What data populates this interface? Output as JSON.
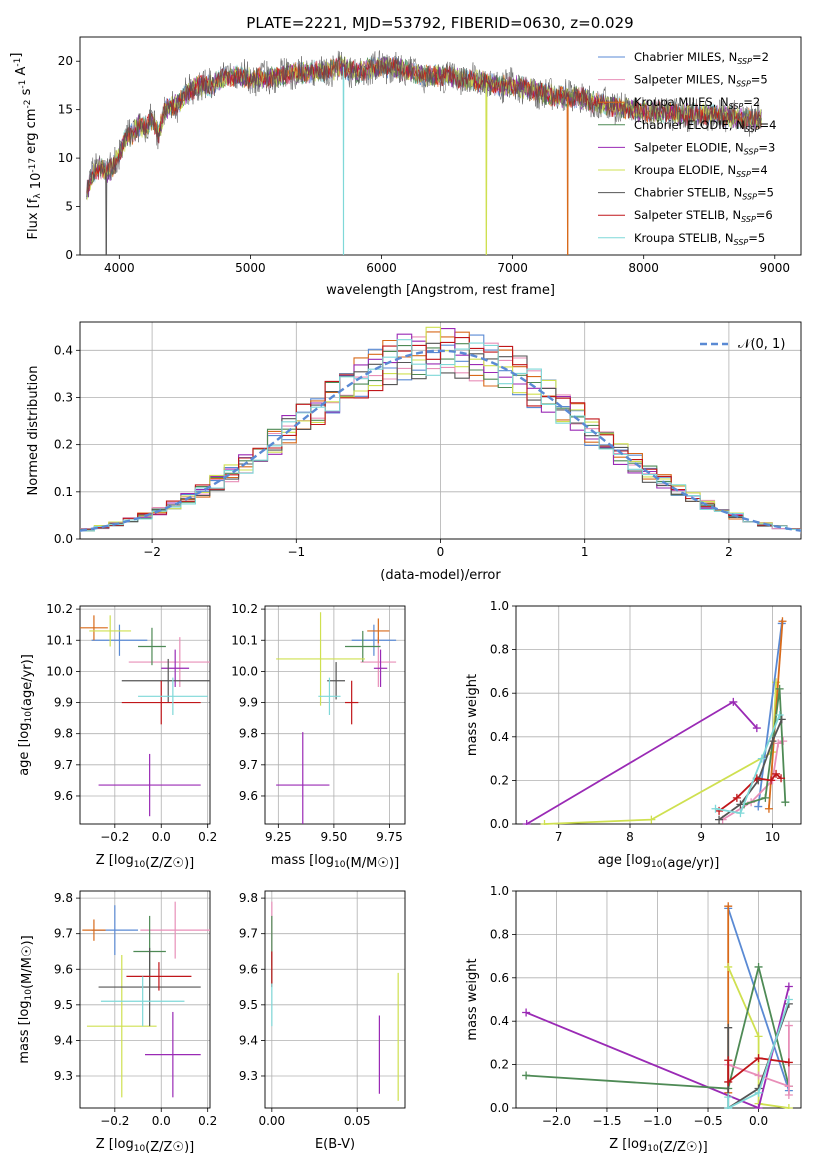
{
  "title": "PLATE=2221, MJD=53792, FIBERID=0630, z=0.029",
  "colors": {
    "chabrier_miles": "#5a8ad4",
    "salpeter_miles": "#e88fb8",
    "kroupa_miles": "#d86a1a",
    "chabrier_elodie": "#4e8a55",
    "salpeter_elodie": "#9a2ab5",
    "kroupa_elodie": "#cfe050",
    "chabrier_stelib": "#555555",
    "salpeter_stelib": "#c0161a",
    "kroupa_stelib": "#7fd8d8",
    "normal_curve": "#5a8ad4",
    "grid": "#b0b0b0"
  },
  "chart_data": [
    {
      "id": "spectrum",
      "type": "line",
      "xlabel": "wavelength [Angstrom, rest frame]",
      "ylabel": "Flux [f_λ 10^-17 erg cm^-2 s^-1 A^-1]",
      "xlim": [
        3700,
        9200
      ],
      "ylim": [
        0,
        22.5
      ],
      "xticks": [
        4000,
        5000,
        6000,
        7000,
        8000,
        9000
      ],
      "yticks": [
        0,
        5,
        10,
        15,
        20
      ],
      "grid": false,
      "legend_position": "top-right",
      "profile": {
        "x": [
          3750,
          3800,
          3850,
          3900,
          3950,
          4000,
          4050,
          4100,
          4150,
          4200,
          4250,
          4300,
          4350,
          4400,
          4450,
          4500,
          4600,
          4700,
          4800,
          4900,
          5000,
          5100,
          5200,
          5300,
          5400,
          5500,
          5600,
          5700,
          5800,
          5900,
          6000,
          6100,
          6200,
          6300,
          6400,
          6500,
          6600,
          6700,
          6800,
          6900,
          7000,
          7100,
          7200,
          7300,
          7400,
          7500,
          7600,
          7700,
          7800,
          7900,
          8000,
          8100,
          8200,
          8300,
          8400,
          8500,
          8600,
          8700,
          8800,
          8900
        ],
        "y": [
          6.5,
          8.5,
          9.0,
          8.5,
          9.0,
          10.5,
          12.0,
          12.5,
          13.5,
          13.0,
          14.0,
          12.5,
          15.0,
          15.5,
          15.5,
          16.5,
          17.5,
          17.5,
          18.3,
          18.5,
          18.2,
          18.3,
          18.3,
          18.8,
          18.8,
          19.0,
          19.0,
          19.5,
          18.8,
          19.2,
          19.5,
          19.3,
          19.0,
          18.5,
          18.5,
          18.5,
          18.2,
          18.0,
          17.8,
          17.5,
          17.5,
          17.2,
          16.8,
          16.5,
          16.3,
          16.3,
          15.8,
          15.5,
          15.3,
          15.0,
          14.8,
          14.8,
          14.7,
          14.5,
          14.5,
          14.5,
          14.3,
          14.2,
          14.0,
          14.0
        ]
      },
      "series": [
        {
          "name": "Chabrier MILES, N_SSP=2",
          "label_main": "Chabrier MILES, N",
          "label_sub": "SSP",
          "label_end": "=2",
          "color_key": "chabrier_miles"
        },
        {
          "name": "Salpeter MILES, N_SSP=5",
          "label_main": "Salpeter MILES, N",
          "label_sub": "SSP",
          "label_end": "=5",
          "color_key": "salpeter_miles"
        },
        {
          "name": "Kroupa MILES, N_SSP=2",
          "label_main": "Kroupa MILES, N",
          "label_sub": "SSP",
          "label_end": "=2",
          "color_key": "kroupa_miles"
        },
        {
          "name": "Chabrier ELODIE, N_SSP=4",
          "label_main": "Chabrier ELODIE, N",
          "label_sub": "SSP",
          "label_end": "=4",
          "color_key": "chabrier_elodie"
        },
        {
          "name": "Salpeter ELODIE, N_SSP=3",
          "label_main": "Salpeter ELODIE, N",
          "label_sub": "SSP",
          "label_end": "=3",
          "color_key": "salpeter_elodie"
        },
        {
          "name": "Kroupa ELODIE, N_SSP=4",
          "label_main": "Kroupa ELODIE, N",
          "label_sub": "SSP",
          "label_end": "=4",
          "color_key": "kroupa_elodie"
        },
        {
          "name": "Chabrier STELIB, N_SSP=5",
          "label_main": "Chabrier STELIB, N",
          "label_sub": "SSP",
          "label_end": "=5",
          "color_key": "chabrier_stelib"
        },
        {
          "name": "Salpeter STELIB, N_SSP=6",
          "label_main": "Salpeter STELIB, N",
          "label_sub": "SSP",
          "label_end": "=6",
          "color_key": "salpeter_stelib"
        },
        {
          "name": "Kroupa STELIB, N_SSP=5",
          "label_main": "Kroupa STELIB, N",
          "label_sub": "SSP",
          "label_end": "=5",
          "color_key": "kroupa_stelib"
        }
      ],
      "dropouts": [
        {
          "x": 5710,
          "color_key": "kroupa_stelib"
        },
        {
          "x": 6800,
          "color_key": "kroupa_elodie"
        },
        {
          "x": 7420,
          "color_key": "kroupa_miles"
        },
        {
          "x": 3900,
          "color_key": "chabrier_stelib"
        }
      ]
    },
    {
      "id": "residual-histogram",
      "type": "histogram",
      "xlabel": "(data-model)/error",
      "ylabel": "Normed distribution",
      "xlim": [
        -2.5,
        2.5
      ],
      "ylim": [
        0,
        0.46
      ],
      "xticks": [
        -2,
        -1,
        0,
        1,
        2
      ],
      "yticks": [
        0.0,
        0.1,
        0.2,
        0.3,
        0.4
      ],
      "grid": true,
      "bin_width": 0.1,
      "legend_position": "top-right",
      "normal_curve": {
        "label": "𝒩(0, 1)",
        "mean": 0,
        "sigma": 1
      },
      "series_color_keys": [
        "chabrier_miles",
        "salpeter_miles",
        "kroupa_miles",
        "chabrier_elodie",
        "salpeter_elodie",
        "kroupa_elodie",
        "chabrier_stelib",
        "salpeter_stelib",
        "kroupa_stelib"
      ]
    },
    {
      "id": "age-vs-z",
      "type": "errorbar",
      "xlabel": "Z [log10(Z/Z☉)]",
      "ylabel": "age [log10(age/yr)]",
      "xlim": [
        -0.35,
        0.21
      ],
      "ylim": [
        9.51,
        10.21
      ],
      "xticks": [
        -0.2,
        0.0,
        0.2
      ],
      "xticklabels": [
        "−0.2",
        "0.0",
        "0.2"
      ],
      "yticks": [
        9.6,
        9.7,
        9.8,
        9.9,
        10.0,
        10.1,
        10.2
      ],
      "grid": true,
      "points": [
        {
          "color_key": "chabrier_miles",
          "x": -0.18,
          "xerr": 0.12,
          "y": 10.1,
          "yerr": 0.05
        },
        {
          "color_key": "salpeter_miles",
          "x": 0.08,
          "xerr": 0.22,
          "y": 10.03,
          "yerr": 0.08
        },
        {
          "color_key": "kroupa_miles",
          "x": -0.29,
          "xerr": 0.06,
          "y": 10.14,
          "yerr": 0.04
        },
        {
          "color_key": "chabrier_elodie",
          "x": -0.04,
          "xerr": 0.06,
          "y": 10.08,
          "yerr": 0.06
        },
        {
          "color_key": "salpeter_elodie",
          "x": 0.06,
          "xerr": 0.06,
          "y": 10.01,
          "yerr": 0.06
        },
        {
          "color_key": "kroupa_elodie",
          "x": -0.22,
          "xerr": 0.09,
          "y": 10.13,
          "yerr": 0.05
        },
        {
          "color_key": "chabrier_stelib",
          "x": 0.03,
          "xerr": 0.2,
          "y": 9.97,
          "yerr": 0.07
        },
        {
          "color_key": "salpeter_stelib",
          "x": 0.0,
          "xerr": 0.17,
          "y": 9.9,
          "yerr": 0.07
        },
        {
          "color_key": "kroupa_stelib",
          "x": 0.05,
          "xerr": 0.15,
          "y": 9.92,
          "yerr": 0.06
        },
        {
          "color_key": "salpeter_elodie",
          "x": -0.05,
          "xerr": 0.22,
          "y": 9.635,
          "yerr": 0.1
        }
      ]
    },
    {
      "id": "age-vs-mass",
      "type": "errorbar",
      "xlabel": "mass [log10(M/M☉)]",
      "xlim": [
        9.19,
        9.82
      ],
      "ylim": [
        9.51,
        10.21
      ],
      "xticks": [
        9.25,
        9.5,
        9.75
      ],
      "xticklabels": [
        "9.25",
        "9.50",
        "9.75"
      ],
      "yticks": [
        9.6,
        9.7,
        9.8,
        9.9,
        10.0,
        10.1,
        10.2
      ],
      "grid": true,
      "points": [
        {
          "color_key": "chabrier_miles",
          "x": 9.68,
          "xerr": 0.1,
          "y": 10.1,
          "yerr": 0.05
        },
        {
          "color_key": "salpeter_miles",
          "x": 9.7,
          "xerr": 0.08,
          "y": 10.03,
          "yerr": 0.08
        },
        {
          "color_key": "kroupa_miles",
          "x": 9.7,
          "xerr": 0.05,
          "y": 10.13,
          "yerr": 0.04
        },
        {
          "color_key": "chabrier_elodie",
          "x": 9.63,
          "xerr": 0.08,
          "y": 10.08,
          "yerr": 0.05
        },
        {
          "color_key": "salpeter_elodie",
          "x": 9.71,
          "xerr": 0.03,
          "y": 10.01,
          "yerr": 0.06
        },
        {
          "color_key": "kroupa_elodie",
          "x": 9.44,
          "xerr": 0.2,
          "y": 10.04,
          "yerr": 0.15
        },
        {
          "color_key": "chabrier_stelib",
          "x": 9.51,
          "xerr": 0.04,
          "y": 9.97,
          "yerr": 0.06
        },
        {
          "color_key": "salpeter_stelib",
          "x": 9.58,
          "xerr": 0.03,
          "y": 9.9,
          "yerr": 0.07
        },
        {
          "color_key": "kroupa_stelib",
          "x": 9.48,
          "xerr": 0.05,
          "y": 9.92,
          "yerr": 0.06
        },
        {
          "color_key": "salpeter_elodie",
          "x": 9.36,
          "xerr": 0.12,
          "y": 9.635,
          "yerr": 0.17
        }
      ]
    },
    {
      "id": "mass-weight-vs-age",
      "type": "line",
      "xlabel": "age [log10(age/yr)]",
      "ylabel": "mass weight",
      "xlim": [
        6.4,
        10.4
      ],
      "ylim": [
        0,
        1.0
      ],
      "xticks": [
        7,
        8,
        9,
        10
      ],
      "yticks": [
        0.0,
        0.2,
        0.4,
        0.6,
        0.8,
        1.0
      ],
      "grid": true,
      "series": [
        {
          "color_key": "kroupa_elodie",
          "x": [
            6.8,
            8.3,
            10.0,
            10.05
          ],
          "y": [
            0.0,
            0.02,
            0.33,
            0.65
          ]
        },
        {
          "color_key": "salpeter_elodie",
          "x": [
            6.55,
            9.45,
            9.78
          ],
          "y": [
            0.0,
            0.56,
            0.44
          ]
        },
        {
          "color_key": "chabrier_miles",
          "x": [
            9.8,
            10.13
          ],
          "y": [
            0.08,
            0.92
          ]
        },
        {
          "color_key": "kroupa_miles",
          "x": [
            9.95,
            10.14
          ],
          "y": [
            0.07,
            0.93
          ]
        },
        {
          "color_key": "salpeter_miles",
          "x": [
            9.3,
            9.7,
            10.0,
            10.08,
            10.15
          ],
          "y": [
            0.02,
            0.1,
            0.2,
            0.37,
            0.38
          ]
        },
        {
          "color_key": "chabrier_elodie",
          "x": [
            9.6,
            9.9,
            10.1,
            10.18
          ],
          "y": [
            0.09,
            0.12,
            0.62,
            0.1
          ]
        },
        {
          "color_key": "chabrier_stelib",
          "x": [
            9.25,
            9.55,
            9.8,
            10.0,
            10.13
          ],
          "y": [
            0.02,
            0.09,
            0.2,
            0.38,
            0.48
          ]
        },
        {
          "color_key": "salpeter_stelib",
          "x": [
            9.25,
            9.5,
            9.78,
            9.98,
            10.05,
            10.12
          ],
          "y": [
            0.06,
            0.12,
            0.21,
            0.2,
            0.23,
            0.21
          ]
        },
        {
          "color_key": "kroupa_stelib",
          "x": [
            9.2,
            9.55,
            9.85,
            10.1
          ],
          "y": [
            0.07,
            0.05,
            0.3,
            0.5
          ]
        }
      ]
    },
    {
      "id": "mass-vs-z",
      "type": "errorbar",
      "xlabel": "Z [log10(Z/Z☉)]",
      "ylabel": "mass [log10(M/M☉)]",
      "xlim": [
        -0.35,
        0.21
      ],
      "ylim": [
        9.21,
        9.82
      ],
      "xticks": [
        -0.2,
        0.0,
        0.2
      ],
      "xticklabels": [
        "−0.2",
        "0.0",
        "0.2"
      ],
      "yticks": [
        9.3,
        9.4,
        9.5,
        9.6,
        9.7,
        9.8
      ],
      "grid": true,
      "points": [
        {
          "color_key": "chabrier_miles",
          "x": -0.2,
          "xerr": 0.1,
          "y": 9.71,
          "yerr": 0.07
        },
        {
          "color_key": "salpeter_miles",
          "x": 0.06,
          "xerr": 0.15,
          "y": 9.71,
          "yerr": 0.08
        },
        {
          "color_key": "kroupa_miles",
          "x": -0.29,
          "xerr": 0.05,
          "y": 9.71,
          "yerr": 0.03
        },
        {
          "color_key": "chabrier_elodie",
          "x": -0.05,
          "xerr": 0.07,
          "y": 9.65,
          "yerr": 0.1
        },
        {
          "color_key": "salpeter_elodie",
          "x": 0.05,
          "xerr": 0.12,
          "y": 9.36,
          "yerr": 0.12
        },
        {
          "color_key": "kroupa_elodie",
          "x": -0.17,
          "xerr": 0.15,
          "y": 9.44,
          "yerr": 0.2
        },
        {
          "color_key": "chabrier_stelib",
          "x": -0.05,
          "xerr": 0.22,
          "y": 9.55,
          "yerr": 0.11
        },
        {
          "color_key": "salpeter_stelib",
          "x": -0.01,
          "xerr": 0.14,
          "y": 9.58,
          "yerr": 0.04
        },
        {
          "color_key": "kroupa_stelib",
          "x": -0.08,
          "xerr": 0.18,
          "y": 9.51,
          "yerr": 0.07
        }
      ]
    },
    {
      "id": "mass-vs-ebv",
      "type": "errorbar",
      "xlabel": "E(B-V)",
      "xlim": [
        -0.004,
        0.078
      ],
      "ylim": [
        9.21,
        9.82
      ],
      "xticks": [
        0.0,
        0.05
      ],
      "xticklabels": [
        "0.00",
        "0.05"
      ],
      "yticks": [
        9.3,
        9.4,
        9.5,
        9.6,
        9.7,
        9.8
      ],
      "grid": true,
      "points": [
        {
          "color_key": "salpeter_miles",
          "x": 0.0,
          "xerr": 0.0,
          "y": 9.7,
          "yerr": 0.09
        },
        {
          "color_key": "chabrier_elodie",
          "x": 0.0,
          "xerr": 0.0,
          "y": 9.65,
          "yerr": 0.1
        },
        {
          "color_key": "salpeter_stelib",
          "x": 0.0,
          "xerr": 0.0,
          "y": 9.6,
          "yerr": 0.05
        },
        {
          "color_key": "kroupa_stelib",
          "x": 0.0,
          "xerr": 0.0,
          "y": 9.5,
          "yerr": 0.06
        },
        {
          "color_key": "salpeter_elodie",
          "x": 0.063,
          "xerr": 0.0,
          "y": 9.36,
          "yerr": 0.11
        },
        {
          "color_key": "kroupa_elodie",
          "x": 0.074,
          "xerr": 0.0,
          "y": 9.41,
          "yerr": 0.18
        }
      ]
    },
    {
      "id": "mass-weight-vs-z",
      "type": "line",
      "xlabel": "Z [log10(Z/Z☉)]",
      "ylabel": "mass weight",
      "xlim": [
        -2.4,
        0.42
      ],
      "ylim": [
        0,
        1.0
      ],
      "xticks": [
        -2.0,
        -1.5,
        -1.0,
        -0.5,
        0.0
      ],
      "xticklabels": [
        "−2.0",
        "−1.5",
        "−1.0",
        "−0.5",
        "0.0"
      ],
      "yticks": [
        0.0,
        0.2,
        0.4,
        0.6,
        0.8,
        1.0
      ],
      "grid": true,
      "series": [
        {
          "color_key": "chabrier_miles",
          "x": [
            -0.3,
            0.3
          ],
          "y": [
            0.92,
            0.08
          ]
        },
        {
          "color_key": "kroupa_miles",
          "x": [
            -0.3,
            -0.3
          ],
          "y": [
            0.93,
            0.07
          ]
        },
        {
          "color_key": "kroupa_elodie",
          "x": [
            -0.3,
            0.0,
            0.0,
            0.3
          ],
          "y": [
            0.65,
            0.33,
            0.02,
            0.0
          ]
        },
        {
          "color_key": "salpeter_elodie",
          "x": [
            -2.3,
            0.0,
            0.3
          ],
          "y": [
            0.44,
            0.0,
            0.56
          ]
        },
        {
          "color_key": "chabrier_elodie",
          "x": [
            -2.3,
            -0.3,
            0.0,
            0.3
          ],
          "y": [
            0.15,
            0.09,
            0.65,
            0.1
          ]
        },
        {
          "color_key": "salpeter_miles",
          "x": [
            0.3,
            0.3,
            0.3,
            0.0,
            -0.3
          ],
          "y": [
            0.38,
            0.06,
            0.1,
            0.15,
            0.2
          ]
        },
        {
          "color_key": "chabrier_stelib",
          "x": [
            -0.3,
            -0.3,
            0.0,
            0.3
          ],
          "y": [
            0.37,
            0.0,
            0.09,
            0.48
          ]
        },
        {
          "color_key": "salpeter_stelib",
          "x": [
            -0.3,
            -0.3,
            0.0,
            0.3
          ],
          "y": [
            0.22,
            0.12,
            0.23,
            0.21
          ]
        },
        {
          "color_key": "kroupa_stelib",
          "x": [
            -0.3,
            -0.3,
            0.0,
            0.3
          ],
          "y": [
            0.05,
            0.0,
            0.07,
            0.5
          ]
        }
      ]
    }
  ]
}
